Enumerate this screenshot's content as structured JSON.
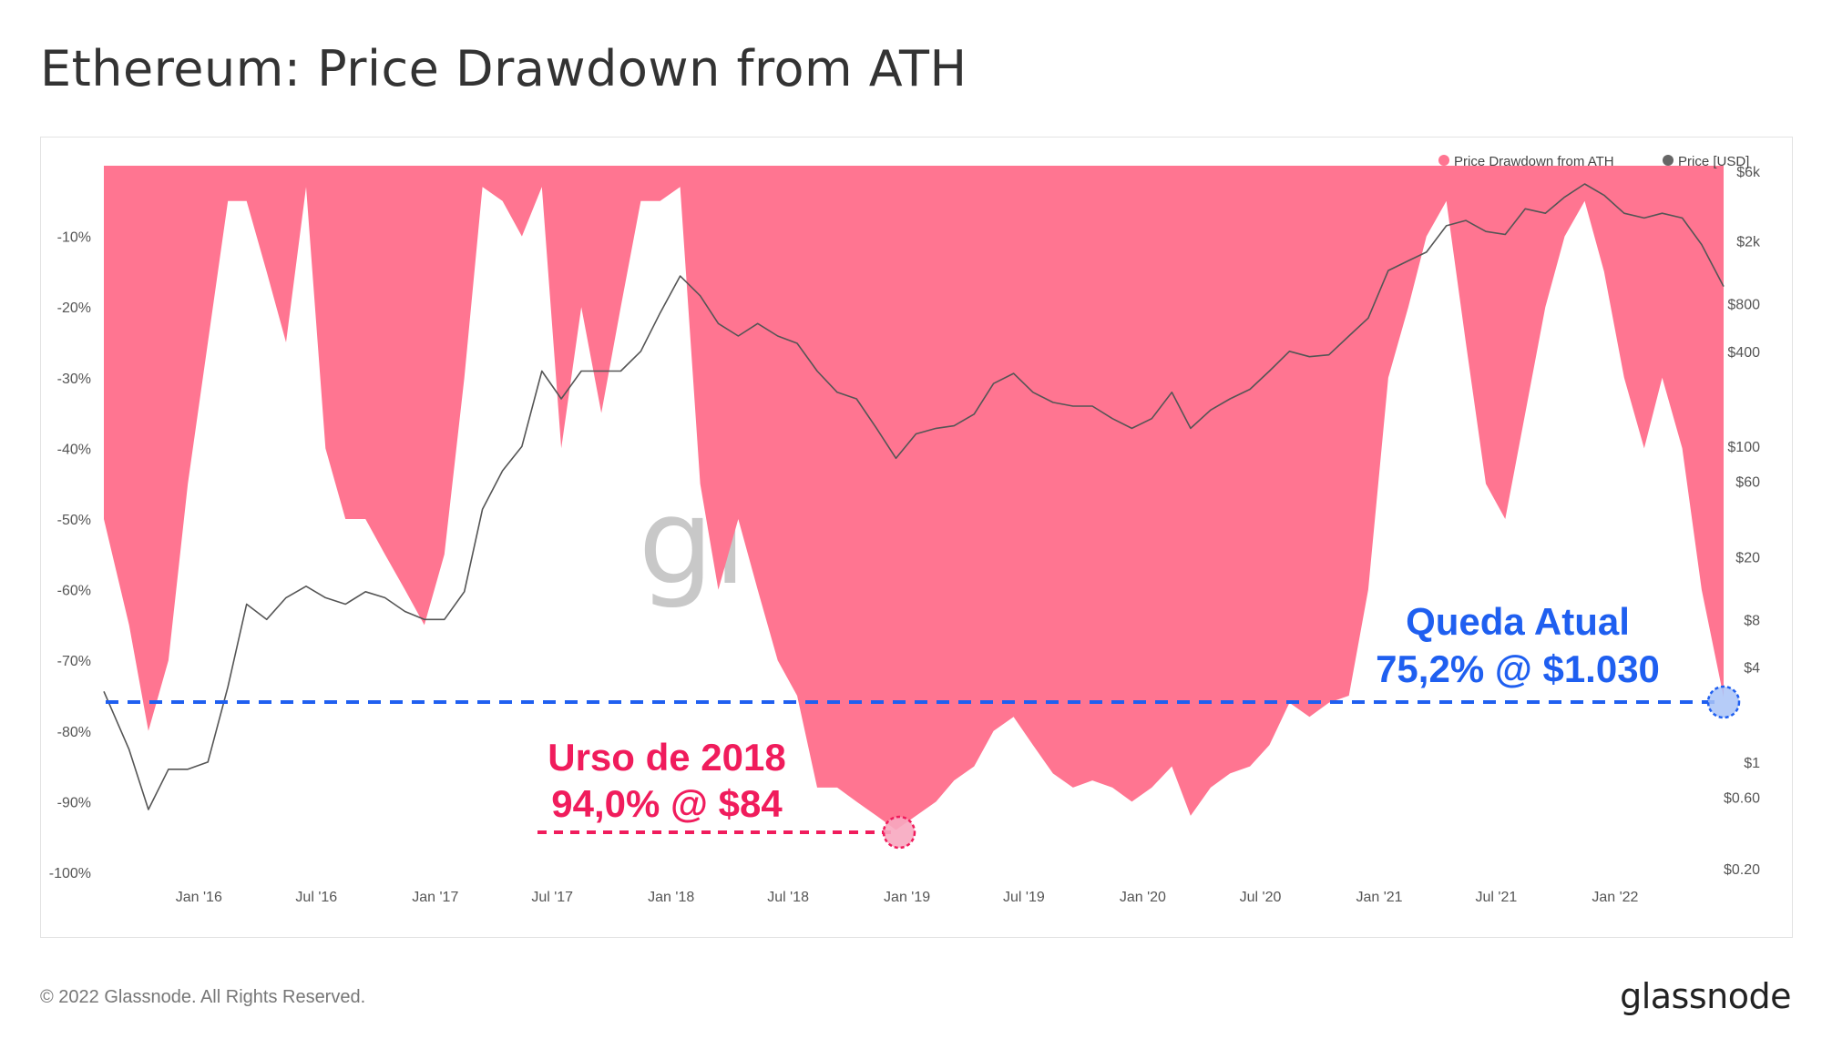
{
  "title": "Ethereum: Price Drawdown from ATH",
  "footer": "© 2022 Glassnode. All Rights Reserved.",
  "brand": "glassnode",
  "watermark": "gl",
  "colors": {
    "drawdown": "#ff7591",
    "price": "#555555",
    "blue": "#1f5ff0",
    "red": "#f01c5c"
  },
  "annotations": {
    "current": {
      "line1": "Queda Atual",
      "line2": "75,2% @ $1.030"
    },
    "bear2018": {
      "line1": "Urso de 2018",
      "line2": "94,0% @ $84"
    }
  },
  "chart_data": {
    "type": "area",
    "legend": [
      "Price Drawdown from ATH",
      "Price [USD]"
    ],
    "legend_position": "top-right",
    "x_ticks": [
      "Jan '16",
      "Jul '16",
      "Jan '17",
      "Jul '17",
      "Jan '18",
      "Jul '18",
      "Jan '19",
      "Jul '19",
      "Jan '20",
      "Jul '20",
      "Jan '21",
      "Jul '21",
      "Jan '22"
    ],
    "y_left_ticks": [
      "-10%",
      "-20%",
      "-30%",
      "-40%",
      "-50%",
      "-60%",
      "-70%",
      "-80%",
      "-90%",
      "-100%"
    ],
    "y_right_ticks": [
      "$6k",
      "$2k",
      "$800",
      "$400",
      "$100",
      "$60",
      "$20",
      "$8",
      "$4",
      "$1",
      "$0.60",
      "$0.20"
    ],
    "y_left_range": [
      -100,
      0
    ],
    "y_right_scale": "log",
    "x_range": [
      "2015-08",
      "2022-06"
    ],
    "series": [
      {
        "name": "Price Drawdown from ATH",
        "x": [
          "2015-08",
          "2015-09",
          "2015-10",
          "2015-11",
          "2015-12",
          "2016-01",
          "2016-02",
          "2016-03",
          "2016-04",
          "2016-05",
          "2016-06",
          "2016-07",
          "2016-08",
          "2016-09",
          "2016-10",
          "2016-11",
          "2016-12",
          "2017-01",
          "2017-02",
          "2017-03",
          "2017-04",
          "2017-05",
          "2017-06",
          "2017-07",
          "2017-08",
          "2017-09",
          "2017-10",
          "2017-11",
          "2017-12",
          "2018-01",
          "2018-02",
          "2018-03",
          "2018-04",
          "2018-05",
          "2018-06",
          "2018-07",
          "2018-08",
          "2018-09",
          "2018-10",
          "2018-11",
          "2018-12",
          "2019-01",
          "2019-02",
          "2019-03",
          "2019-04",
          "2019-05",
          "2019-06",
          "2019-07",
          "2019-08",
          "2019-09",
          "2019-10",
          "2019-11",
          "2019-12",
          "2020-01",
          "2020-02",
          "2020-03",
          "2020-04",
          "2020-05",
          "2020-06",
          "2020-07",
          "2020-08",
          "2020-09",
          "2020-10",
          "2020-11",
          "2020-12",
          "2021-01",
          "2021-02",
          "2021-03",
          "2021-04",
          "2021-05",
          "2021-06",
          "2021-07",
          "2021-08",
          "2021-09",
          "2021-10",
          "2021-11",
          "2021-12",
          "2022-01",
          "2022-02",
          "2022-03",
          "2022-04",
          "2022-05",
          "2022-06"
        ],
        "values": [
          -50,
          -65,
          -80,
          -70,
          -45,
          -25,
          -5,
          -5,
          -15,
          -25,
          -3,
          -40,
          -50,
          -50,
          -55,
          -60,
          -65,
          -55,
          -30,
          -3,
          -5,
          -10,
          -3,
          -40,
          -20,
          -35,
          -20,
          -5,
          -5,
          -3,
          -45,
          -60,
          -50,
          -60,
          -70,
          -75,
          -88,
          -88,
          -90,
          -92,
          -94,
          -92,
          -90,
          -87,
          -85,
          -80,
          -78,
          -82,
          -86,
          -88,
          -87,
          -88,
          -90,
          -88,
          -85,
          -92,
          -88,
          -86,
          -85,
          -82,
          -76,
          -78,
          -76,
          -75,
          -60,
          -30,
          -20,
          -10,
          -5,
          -25,
          -45,
          -50,
          -35,
          -20,
          -10,
          -5,
          -15,
          -30,
          -40,
          -30,
          -40,
          -60,
          -75.2
        ]
      },
      {
        "name": "Price [USD]",
        "x": [
          "2015-08",
          "2015-09",
          "2015-10",
          "2015-11",
          "2015-12",
          "2016-01",
          "2016-02",
          "2016-03",
          "2016-04",
          "2016-05",
          "2016-06",
          "2016-07",
          "2016-08",
          "2016-09",
          "2016-10",
          "2016-11",
          "2016-12",
          "2017-01",
          "2017-02",
          "2017-03",
          "2017-04",
          "2017-05",
          "2017-06",
          "2017-07",
          "2017-08",
          "2017-09",
          "2017-10",
          "2017-11",
          "2017-12",
          "2018-01",
          "2018-02",
          "2018-03",
          "2018-04",
          "2018-05",
          "2018-06",
          "2018-07",
          "2018-08",
          "2018-09",
          "2018-10",
          "2018-11",
          "2018-12",
          "2019-01",
          "2019-02",
          "2019-03",
          "2019-04",
          "2019-05",
          "2019-06",
          "2019-07",
          "2019-08",
          "2019-09",
          "2019-10",
          "2019-11",
          "2019-12",
          "2020-01",
          "2020-02",
          "2020-03",
          "2020-04",
          "2020-05",
          "2020-06",
          "2020-07",
          "2020-08",
          "2020-09",
          "2020-10",
          "2020-11",
          "2020-12",
          "2021-01",
          "2021-02",
          "2021-03",
          "2021-04",
          "2021-05",
          "2021-06",
          "2021-07",
          "2021-08",
          "2021-09",
          "2021-10",
          "2021-11",
          "2021-12",
          "2022-01",
          "2022-02",
          "2022-03",
          "2022-04",
          "2022-05",
          "2022-06"
        ],
        "values": [
          2.8,
          1.2,
          0.5,
          0.9,
          0.9,
          1.0,
          3,
          10,
          8,
          11,
          13,
          11,
          10,
          12,
          11,
          9,
          8,
          8,
          12,
          40,
          70,
          100,
          300,
          200,
          300,
          300,
          300,
          400,
          700,
          1200,
          900,
          600,
          500,
          600,
          500,
          450,
          300,
          220,
          200,
          130,
          84,
          120,
          130,
          135,
          160,
          250,
          290,
          220,
          190,
          180,
          180,
          150,
          130,
          150,
          220,
          130,
          170,
          200,
          230,
          300,
          400,
          370,
          380,
          500,
          650,
          1300,
          1500,
          1700,
          2500,
          2700,
          2300,
          2200,
          3200,
          3000,
          3800,
          4600,
          3900,
          3000,
          2800,
          3000,
          2800,
          1900,
          1030
        ]
      }
    ]
  }
}
